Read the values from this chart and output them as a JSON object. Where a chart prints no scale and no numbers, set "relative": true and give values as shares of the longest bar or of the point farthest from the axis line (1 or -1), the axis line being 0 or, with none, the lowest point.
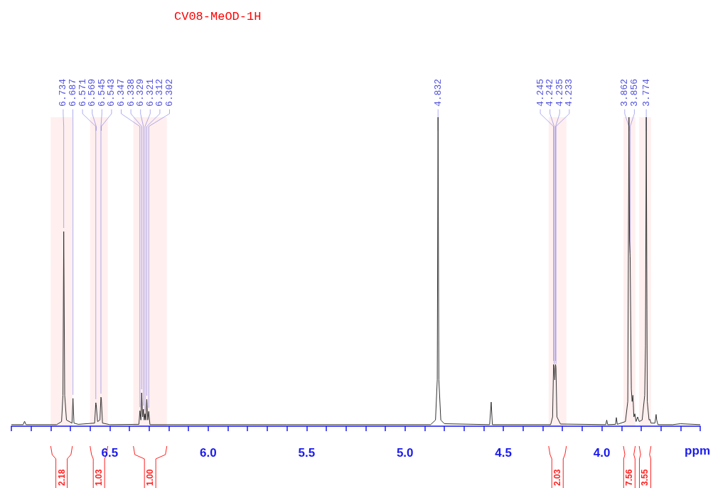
{
  "chart_data": {
    "type": "line",
    "title": "CV08-MeOD-1H",
    "xlabel": "ppm",
    "relative": true,
    "grid": false,
    "marker": "none",
    "xlim": [
      7.0,
      3.5
    ],
    "xticks": [
      {
        "value": 7.0,
        "label": null
      },
      {
        "value": 6.9,
        "label": null
      },
      {
        "value": 6.8,
        "label": null
      },
      {
        "value": 6.7,
        "label": null
      },
      {
        "value": 6.6,
        "label": null
      },
      {
        "value": 6.5,
        "label": "6.5"
      },
      {
        "value": 6.4,
        "label": null
      },
      {
        "value": 6.3,
        "label": null
      },
      {
        "value": 6.2,
        "label": null
      },
      {
        "value": 6.1,
        "label": null
      },
      {
        "value": 6,
        "label": "6.0"
      },
      {
        "value": 5.9,
        "label": null
      },
      {
        "value": 5.8,
        "label": null
      },
      {
        "value": 5.7,
        "label": null
      },
      {
        "value": 5.6,
        "label": null
      },
      {
        "value": 5.5,
        "label": "5.5"
      },
      {
        "value": 5.4,
        "label": null
      },
      {
        "value": 5.3,
        "label": null
      },
      {
        "value": 5.2,
        "label": null
      },
      {
        "value": 5.1,
        "label": null
      },
      {
        "value": 5,
        "label": "5.0"
      },
      {
        "value": 4.9,
        "label": null
      },
      {
        "value": 4.8,
        "label": null
      },
      {
        "value": 4.7,
        "label": null
      },
      {
        "value": 4.6,
        "label": null
      },
      {
        "value": 4.5,
        "label": "4.5"
      },
      {
        "value": 4.4,
        "label": null
      },
      {
        "value": 4.3,
        "label": null
      },
      {
        "value": 4.2,
        "label": null
      },
      {
        "value": 4.1,
        "label": null
      },
      {
        "value": 4,
        "label": "4.0"
      },
      {
        "value": 3.9,
        "label": null
      },
      {
        "value": 3.8,
        "label": null
      },
      {
        "value": 3.7,
        "label": null
      },
      {
        "value": 3.6,
        "label": null
      },
      {
        "value": 3.5,
        "label": null
      }
    ],
    "x": [
      7.0,
      6.94,
      6.933,
      6.926,
      6.77,
      6.745,
      6.738,
      6.734,
      6.729,
      6.72,
      6.692,
      6.687,
      6.682,
      6.66,
      6.577,
      6.571,
      6.569,
      6.562,
      6.55,
      6.545,
      6.543,
      6.537,
      6.5,
      6.352,
      6.347,
      6.342,
      6.338,
      6.333,
      6.329,
      6.325,
      6.321,
      6.317,
      6.312,
      6.307,
      6.302,
      6.296,
      6.0,
      5.6,
      4.87,
      4.845,
      4.836,
      4.832,
      4.828,
      4.818,
      4.8,
      4.57,
      4.562,
      4.556,
      4.26,
      4.25,
      4.245,
      4.242,
      4.239,
      4.235,
      4.233,
      4.228,
      4.21,
      3.98,
      3.975,
      3.97,
      3.93,
      3.926,
      3.921,
      3.88,
      3.868,
      3.862,
      3.859,
      3.856,
      3.85,
      3.846,
      3.842,
      3.837,
      3.832,
      3.826,
      3.818,
      3.81,
      3.795,
      3.782,
      3.778,
      3.774,
      3.769,
      3.76,
      3.755,
      3.75,
      3.73,
      3.724,
      3.721,
      3.715,
      3.64,
      3.6,
      3.5
    ],
    "series": [
      {
        "color": "#333333",
        "values": [
          0.005,
          0.005,
          0.016,
          0.005,
          0.005,
          0.015,
          0.1,
          0.63,
          0.1,
          0.02,
          0.01,
          0.09,
          0.01,
          0.006,
          0.01,
          0.076,
          0.07,
          0.015,
          0.02,
          0.094,
          0.09,
          0.01,
          0.005,
          0.006,
          0.05,
          0.02,
          0.108,
          0.03,
          0.055,
          0.02,
          0.04,
          0.02,
          0.087,
          0.02,
          0.048,
          0.005,
          0.005,
          0.005,
          0.005,
          0.02,
          0.15,
          1,
          0.15,
          0.02,
          0.008,
          0.005,
          0.078,
          0.005,
          0.005,
          0.03,
          0.2,
          0.19,
          0.15,
          0.2,
          0.19,
          0.03,
          0.007,
          0.005,
          0.02,
          0.005,
          0.006,
          0.028,
          0.006,
          0.015,
          0.08,
          1,
          0.6,
          0.55,
          0.12,
          0.08,
          0.1,
          0.03,
          0.04,
          0.015,
          0.03,
          0.015,
          0.02,
          0.1,
          0.26,
          1,
          0.08,
          0.02,
          0.022,
          0.01,
          0.01,
          0.038,
          0.02,
          0.005,
          0.005,
          0.008,
          0.005
        ]
      }
    ],
    "annotations": [
      {
        "text": "6.734",
        "x": 6.734,
        "y": 0.63
      },
      {
        "text": "6.687",
        "x": 6.687,
        "y": 0.09
      },
      {
        "text": "6.571",
        "x": 6.571,
        "y": 0.076
      },
      {
        "text": "6.569",
        "x": 6.569,
        "y": 0.07
      },
      {
        "text": "6.545",
        "x": 6.545,
        "y": 0.094
      },
      {
        "text": "6.543",
        "x": 6.543,
        "y": 0.09
      },
      {
        "text": "6.347",
        "x": 6.347,
        "y": 0.05
      },
      {
        "text": "6.338",
        "x": 6.338,
        "y": 0.108
      },
      {
        "text": "6.329",
        "x": 6.329,
        "y": 0.055
      },
      {
        "text": "6.321",
        "x": 6.321,
        "y": 0.04
      },
      {
        "text": "6.312",
        "x": 6.312,
        "y": 0.087
      },
      {
        "text": "6.302",
        "x": 6.302,
        "y": 0.048
      },
      {
        "text": "4.832",
        "x": 4.832,
        "y": 1
      },
      {
        "text": "4.245",
        "x": 4.245,
        "y": 0.2
      },
      {
        "text": "4.242",
        "x": 4.242,
        "y": 0.19
      },
      {
        "text": "4.235",
        "x": 4.235,
        "y": 0.2
      },
      {
        "text": "4.233",
        "x": 4.233,
        "y": 0.19
      },
      {
        "text": "3.862",
        "x": 3.862,
        "y": 1
      },
      {
        "text": "3.856",
        "x": 3.856,
        "y": 0.55
      },
      {
        "text": "3.774",
        "x": 3.774,
        "y": 1
      }
    ],
    "bands": [
      {
        "axis": "x",
        "from": 6.8,
        "to": 6.69,
        "label": "2.18",
        "color": "#ff2020"
      },
      {
        "axis": "x",
        "from": 6.6,
        "to": 6.51,
        "label": "1.03",
        "color": "#ff2020"
      },
      {
        "axis": "x",
        "from": 6.38,
        "to": 6.21,
        "label": "1.00",
        "color": "#ff2020"
      },
      {
        "axis": "x",
        "from": 4.27,
        "to": 4.18,
        "label": "2.03",
        "color": "#ff2020"
      },
      {
        "axis": "x",
        "from": 3.89,
        "to": 3.83,
        "label": "7.56",
        "color": "#ff2020"
      },
      {
        "axis": "x",
        "from": 3.81,
        "to": 3.75,
        "label": "3.55",
        "color": "#ff2020"
      }
    ]
  }
}
